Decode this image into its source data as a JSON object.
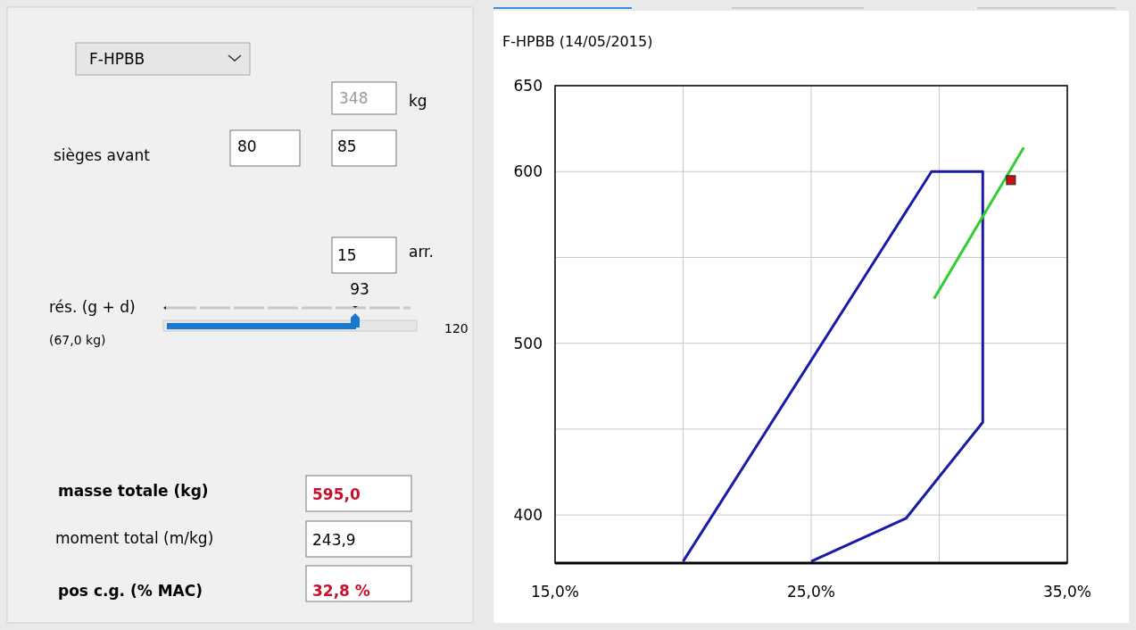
{
  "chart_data": [
    {
      "type": "other",
      "annotations": [
        "F-HPBB",
        "348",
        "kg",
        "sièges avant",
        "80",
        "85",
        "15",
        "arr.",
        "93",
        "rés. (g + d)",
        "(67,0 kg)",
        "120",
        "masse  totale (kg)",
        "595,0",
        "moment total (m/kg)",
        "243,9",
        "pos c.g. (% MAC)",
        "32,8 %"
      ]
    },
    {
      "type": "line",
      "title": "F-HPBB  (14/05/2015)",
      "xlim": [
        15,
        35
      ],
      "ylim": [
        372,
        650
      ],
      "xticks": [
        {
          "value": 15,
          "label": "15,0%"
        },
        {
          "value": 20,
          "label": null
        },
        {
          "value": 25,
          "label": "25,0%"
        },
        {
          "value": 30,
          "label": null
        },
        {
          "value": 35,
          "label": "35,0%"
        }
      ],
      "yticks": [
        {
          "value": 400,
          "label": "400"
        },
        {
          "value": 450,
          "label": null
        },
        {
          "value": 500,
          "label": "500"
        },
        {
          "value": 550,
          "label": null
        },
        {
          "value": 600,
          "label": "600"
        },
        {
          "value": 650,
          "label": "650"
        }
      ],
      "grid": true,
      "series": [
        {
          "color": "#1a1aa8",
          "x": [
            20,
            29.7,
            31.7,
            31.7,
            28.7,
            25
          ],
          "values": [
            373,
            600,
            600,
            454,
            398,
            373
          ]
        },
        {
          "color": "#33cc33",
          "x": [
            29.8,
            33.3
          ],
          "values": [
            526,
            614
          ]
        },
        {
          "type": "scatter",
          "color": "#cc1111",
          "marker": "square",
          "x": [
            32.8
          ],
          "values": [
            595
          ]
        }
      ]
    }
  ]
}
